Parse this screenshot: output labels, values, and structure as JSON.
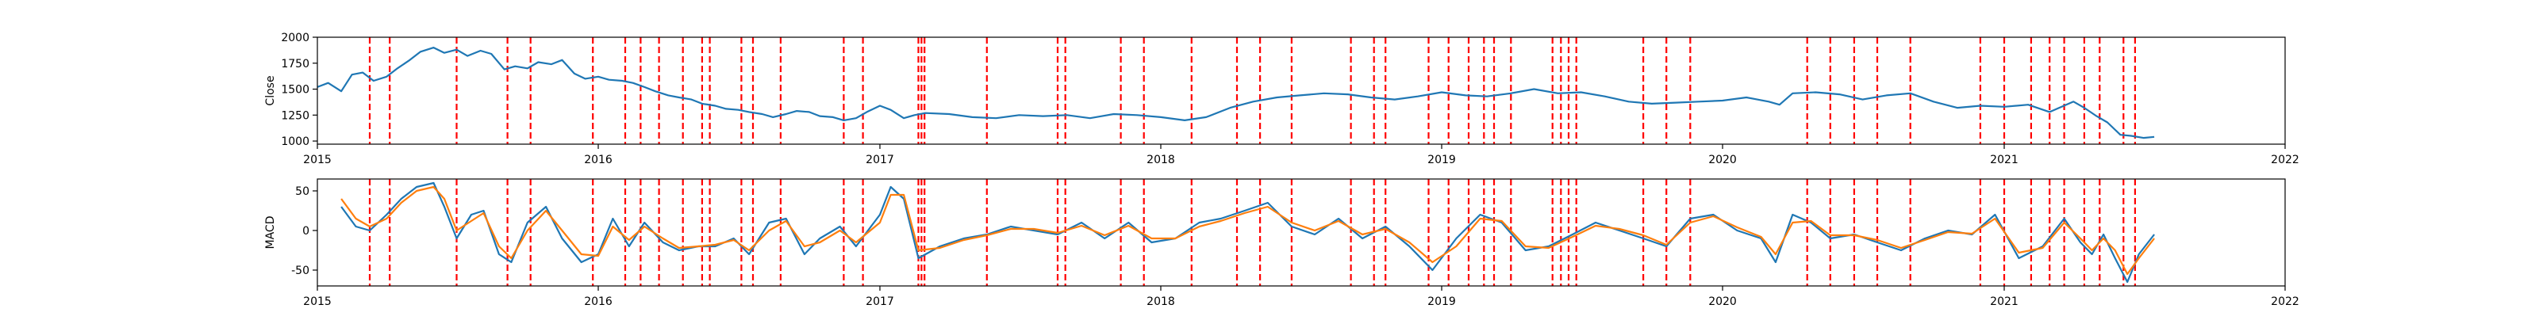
{
  "chart_data": [
    {
      "type": "line",
      "ylabel": "Close",
      "xlim": [
        "2015-01-01",
        "2022-01-01"
      ],
      "ylim": [
        970,
        2000
      ],
      "x_ticks": [
        "2015",
        "2016",
        "2017",
        "2018",
        "2019",
        "2020",
        "2021",
        "2022"
      ],
      "y_ticks": [
        1000,
        1250,
        1500,
        1750,
        2000
      ],
      "series": [
        {
          "color": "#1f77b4",
          "x": [
            "2015-01-01",
            "2015-01-15",
            "2015-02-01",
            "2015-02-15",
            "2015-03-01",
            "2015-03-15",
            "2015-04-01",
            "2015-04-15",
            "2015-05-01",
            "2015-05-15",
            "2015-06-01",
            "2015-06-15",
            "2015-07-01",
            "2015-07-15",
            "2015-08-01",
            "2015-08-15",
            "2015-09-01",
            "2015-09-15",
            "2015-10-01",
            "2015-10-15",
            "2015-11-01",
            "2015-11-15",
            "2015-12-01",
            "2015-12-15",
            "2016-01-01",
            "2016-01-15",
            "2016-02-01",
            "2016-02-15",
            "2016-03-01",
            "2016-03-15",
            "2016-04-01",
            "2016-04-15",
            "2016-05-01",
            "2016-05-15",
            "2016-06-01",
            "2016-06-15",
            "2016-07-01",
            "2016-07-15",
            "2016-08-01",
            "2016-08-15",
            "2016-09-01",
            "2016-09-15",
            "2016-10-01",
            "2016-10-15",
            "2016-11-01",
            "2016-11-15",
            "2016-12-01",
            "2016-12-15",
            "2017-01-01",
            "2017-01-15",
            "2017-02-01",
            "2017-02-15",
            "2017-03-01",
            "2017-04-01",
            "2017-05-01",
            "2017-06-01",
            "2017-07-01",
            "2017-08-01",
            "2017-09-01",
            "2017-10-01",
            "2017-11-01",
            "2017-12-01",
            "2018-01-01",
            "2018-02-01",
            "2018-03-01",
            "2018-04-01",
            "2018-05-01",
            "2018-06-01",
            "2018-07-01",
            "2018-08-01",
            "2018-09-01",
            "2018-10-01",
            "2018-11-01",
            "2018-12-01",
            "2019-01-01",
            "2019-02-01",
            "2019-03-01",
            "2019-04-01",
            "2019-05-01",
            "2019-06-01",
            "2019-07-01",
            "2019-08-01",
            "2019-09-01",
            "2019-10-01",
            "2019-11-01",
            "2019-12-01",
            "2020-01-01",
            "2020-02-01",
            "2020-02-15",
            "2020-03-01",
            "2020-03-15",
            "2020-04-01",
            "2020-05-01",
            "2020-06-01",
            "2020-07-01",
            "2020-08-01",
            "2020-09-01",
            "2020-10-01",
            "2020-11-01",
            "2020-12-01",
            "2021-01-01",
            "2021-02-01",
            "2021-03-01",
            "2021-04-01",
            "2021-04-15",
            "2021-05-01",
            "2021-05-15",
            "2021-06-01",
            "2021-06-15",
            "2021-07-01",
            "2021-07-15"
          ],
          "values": [
            1520,
            1560,
            1480,
            1640,
            1660,
            1580,
            1620,
            1700,
            1780,
            1860,
            1900,
            1850,
            1880,
            1820,
            1870,
            1840,
            1690,
            1720,
            1700,
            1760,
            1740,
            1780,
            1650,
            1600,
            1620,
            1590,
            1580,
            1560,
            1520,
            1480,
            1440,
            1420,
            1400,
            1360,
            1340,
            1310,
            1300,
            1280,
            1260,
            1230,
            1260,
            1290,
            1280,
            1240,
            1230,
            1200,
            1220,
            1280,
            1340,
            1300,
            1220,
            1250,
            1270,
            1260,
            1230,
            1220,
            1250,
            1240,
            1250,
            1220,
            1260,
            1250,
            1230,
            1200,
            1230,
            1320,
            1380,
            1420,
            1440,
            1460,
            1450,
            1420,
            1400,
            1430,
            1470,
            1440,
            1430,
            1460,
            1500,
            1460,
            1470,
            1430,
            1380,
            1360,
            1370,
            1380,
            1390,
            1420,
            1400,
            1380,
            1350,
            1460,
            1470,
            1450,
            1400,
            1440,
            1460,
            1380,
            1320,
            1340,
            1330,
            1350,
            1280,
            1380,
            1320,
            1240,
            1180,
            1060,
            1050,
            1030,
            1040
          ]
        }
      ]
    },
    {
      "type": "line",
      "ylabel": "MACD",
      "xlim": [
        "2015-01-01",
        "2022-01-01"
      ],
      "ylim": [
        -70,
        65
      ],
      "x_ticks": [
        "2015",
        "2016",
        "2017",
        "2018",
        "2019",
        "2020",
        "2021",
        "2022"
      ],
      "y_ticks": [
        -50,
        0,
        50
      ],
      "series": [
        {
          "color": "#1f77b4",
          "x": [
            "2015-02-01",
            "2015-02-20",
            "2015-03-10",
            "2015-04-01",
            "2015-04-20",
            "2015-05-10",
            "2015-06-01",
            "2015-06-15",
            "2015-07-01",
            "2015-07-20",
            "2015-08-05",
            "2015-08-25",
            "2015-09-10",
            "2015-10-01",
            "2015-10-25",
            "2015-11-15",
            "2015-12-10",
            "2016-01-01",
            "2016-01-20",
            "2016-02-10",
            "2016-03-01",
            "2016-03-25",
            "2016-04-15",
            "2016-05-10",
            "2016-06-01",
            "2016-06-25",
            "2016-07-15",
            "2016-08-10",
            "2016-09-01",
            "2016-09-25",
            "2016-10-15",
            "2016-11-10",
            "2016-12-01",
            "2017-01-01",
            "2017-01-15",
            "2017-02-01",
            "2017-02-20",
            "2017-03-20",
            "2017-04-20",
            "2017-05-20",
            "2017-06-20",
            "2017-07-20",
            "2017-08-20",
            "2017-09-20",
            "2017-10-20",
            "2017-11-20",
            "2017-12-20",
            "2018-01-20",
            "2018-02-20",
            "2018-03-20",
            "2018-04-20",
            "2018-05-20",
            "2018-06-20",
            "2018-07-20",
            "2018-08-20",
            "2018-09-20",
            "2018-10-20",
            "2018-11-20",
            "2018-12-20",
            "2019-01-20",
            "2019-02-20",
            "2019-03-20",
            "2019-04-20",
            "2019-05-20",
            "2019-06-20",
            "2019-07-20",
            "2019-08-20",
            "2019-09-20",
            "2019-10-20",
            "2019-11-20",
            "2019-12-20",
            "2020-01-20",
            "2020-02-20",
            "2020-03-10",
            "2020-04-01",
            "2020-04-25",
            "2020-05-20",
            "2020-06-20",
            "2020-07-20",
            "2020-08-20",
            "2020-09-20",
            "2020-10-20",
            "2020-11-20",
            "2020-12-20",
            "2021-01-20",
            "2021-02-20",
            "2021-03-20",
            "2021-04-10",
            "2021-04-25",
            "2021-05-10",
            "2021-05-25",
            "2021-06-10",
            "2021-06-25",
            "2021-07-15"
          ],
          "values": [
            30,
            5,
            0,
            20,
            40,
            55,
            60,
            30,
            -10,
            20,
            25,
            -30,
            -40,
            10,
            30,
            -10,
            -40,
            -30,
            15,
            -20,
            10,
            -15,
            -25,
            -20,
            -20,
            -10,
            -30,
            10,
            15,
            -30,
            -10,
            5,
            -20,
            20,
            55,
            40,
            -35,
            -20,
            -10,
            -5,
            5,
            0,
            -5,
            10,
            -10,
            10,
            -15,
            -10,
            10,
            15,
            25,
            35,
            5,
            -5,
            15,
            -10,
            5,
            -20,
            -50,
            -10,
            20,
            10,
            -25,
            -20,
            -5,
            10,
            0,
            -10,
            -20,
            15,
            20,
            0,
            -10,
            -40,
            20,
            10,
            -10,
            -5,
            -15,
            -25,
            -10,
            0,
            -5,
            20,
            -35,
            -20,
            15,
            -15,
            -30,
            -5,
            -35,
            -65,
            -30,
            -5
          ]
        },
        {
          "color": "#ff7f0e",
          "x": [
            "2015-02-01",
            "2015-02-20",
            "2015-03-10",
            "2015-04-01",
            "2015-04-20",
            "2015-05-10",
            "2015-06-01",
            "2015-06-15",
            "2015-07-01",
            "2015-07-20",
            "2015-08-05",
            "2015-08-25",
            "2015-09-10",
            "2015-10-01",
            "2015-10-25",
            "2015-11-15",
            "2015-12-10",
            "2016-01-01",
            "2016-01-20",
            "2016-02-10",
            "2016-03-01",
            "2016-03-25",
            "2016-04-15",
            "2016-05-10",
            "2016-06-01",
            "2016-06-25",
            "2016-07-15",
            "2016-08-10",
            "2016-09-01",
            "2016-09-25",
            "2016-10-15",
            "2016-11-10",
            "2016-12-01",
            "2017-01-01",
            "2017-01-15",
            "2017-02-01",
            "2017-02-20",
            "2017-03-20",
            "2017-04-20",
            "2017-05-20",
            "2017-06-20",
            "2017-07-20",
            "2017-08-20",
            "2017-09-20",
            "2017-10-20",
            "2017-11-20",
            "2017-12-20",
            "2018-01-20",
            "2018-02-20",
            "2018-03-20",
            "2018-04-20",
            "2018-05-20",
            "2018-06-20",
            "2018-07-20",
            "2018-08-20",
            "2018-09-20",
            "2018-10-20",
            "2018-11-20",
            "2018-12-20",
            "2019-01-20",
            "2019-02-20",
            "2019-03-20",
            "2019-04-20",
            "2019-05-20",
            "2019-06-20",
            "2019-07-20",
            "2019-08-20",
            "2019-09-20",
            "2019-10-20",
            "2019-11-20",
            "2019-12-20",
            "2020-01-20",
            "2020-02-20",
            "2020-03-10",
            "2020-04-01",
            "2020-04-25",
            "2020-05-20",
            "2020-06-20",
            "2020-07-20",
            "2020-08-20",
            "2020-09-20",
            "2020-10-20",
            "2020-11-20",
            "2020-12-20",
            "2021-01-20",
            "2021-02-20",
            "2021-03-20",
            "2021-04-10",
            "2021-04-25",
            "2021-05-10",
            "2021-05-25",
            "2021-06-10",
            "2021-06-25",
            "2021-07-15"
          ],
          "values": [
            40,
            15,
            5,
            15,
            35,
            50,
            55,
            40,
            0,
            12,
            22,
            -20,
            -35,
            0,
            25,
            0,
            -30,
            -32,
            5,
            -12,
            5,
            -10,
            -22,
            -20,
            -18,
            -12,
            -25,
            0,
            12,
            -20,
            -15,
            0,
            -15,
            10,
            45,
            45,
            -25,
            -22,
            -12,
            -6,
            2,
            2,
            -3,
            6,
            -6,
            6,
            -10,
            -10,
            5,
            12,
            22,
            30,
            10,
            0,
            12,
            -5,
            2,
            -15,
            -40,
            -20,
            15,
            12,
            -20,
            -22,
            -8,
            6,
            2,
            -6,
            -18,
            10,
            18,
            4,
            -8,
            -30,
            10,
            12,
            -6,
            -6,
            -12,
            -22,
            -12,
            -2,
            -4,
            15,
            -28,
            -22,
            10,
            -10,
            -25,
            -10,
            -25,
            -55,
            -35,
            -10
          ]
        }
      ]
    }
  ],
  "events": [
    "2015-03-10",
    "2015-04-05",
    "2015-07-01",
    "2015-09-05",
    "2015-10-05",
    "2015-12-25",
    "2016-02-05",
    "2016-02-25",
    "2016-03-20",
    "2016-04-20",
    "2016-05-15",
    "2016-05-25",
    "2016-07-05",
    "2016-07-20",
    "2016-08-25",
    "2016-11-15",
    "2016-12-10",
    "2017-02-20",
    "2017-02-24",
    "2017-02-28",
    "2017-05-20",
    "2017-08-20",
    "2017-08-30",
    "2017-11-10",
    "2017-12-10",
    "2018-02-10",
    "2018-04-10",
    "2018-05-10",
    "2018-06-20",
    "2018-09-05",
    "2018-10-05",
    "2018-10-20",
    "2018-12-15",
    "2019-01-10",
    "2019-02-05",
    "2019-02-25",
    "2019-03-10",
    "2019-04-01",
    "2019-05-25",
    "2019-06-05",
    "2019-06-15",
    "2019-06-25",
    "2019-09-20",
    "2019-10-20",
    "2019-11-20",
    "2020-04-20",
    "2020-05-20",
    "2020-06-20",
    "2020-07-20",
    "2020-09-01",
    "2020-12-01",
    "2021-01-01",
    "2021-02-05",
    "2021-03-01",
    "2021-03-20",
    "2021-04-15",
    "2021-05-05",
    "2021-06-05",
    "2021-06-20"
  ],
  "event_color": "#ff0000"
}
